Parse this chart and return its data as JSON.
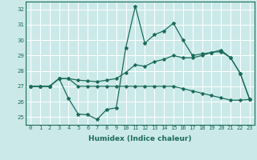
{
  "xlabel": "Humidex (Indice chaleur)",
  "bg_color": "#cce9e9",
  "grid_color": "#ffffff",
  "line_color": "#1a6b5a",
  "xlim": [
    -0.5,
    23.5
  ],
  "ylim": [
    24.5,
    32.5
  ],
  "yticks": [
    25,
    26,
    27,
    28,
    29,
    30,
    31,
    32
  ],
  "xticks": [
    0,
    1,
    2,
    3,
    4,
    5,
    6,
    7,
    8,
    9,
    10,
    11,
    12,
    13,
    14,
    15,
    16,
    17,
    18,
    19,
    20,
    21,
    22,
    23
  ],
  "line1": [
    27.0,
    27.0,
    27.0,
    27.5,
    26.2,
    25.2,
    25.15,
    24.85,
    25.5,
    25.6,
    29.5,
    32.2,
    29.8,
    30.35,
    30.6,
    31.1,
    30.0,
    29.0,
    29.1,
    29.2,
    29.35,
    28.85,
    27.85,
    26.15
  ],
  "line2": [
    27.0,
    27.0,
    27.0,
    27.5,
    27.5,
    27.4,
    27.35,
    27.3,
    27.4,
    27.5,
    27.9,
    28.4,
    28.3,
    28.6,
    28.75,
    29.0,
    28.85,
    28.85,
    29.0,
    29.2,
    29.25,
    28.85,
    27.85,
    26.15
  ],
  "line3": [
    27.0,
    27.0,
    27.0,
    27.5,
    27.5,
    27.0,
    27.0,
    27.0,
    27.0,
    27.0,
    27.0,
    27.0,
    27.0,
    27.0,
    27.0,
    27.0,
    26.85,
    26.7,
    26.55,
    26.4,
    26.25,
    26.1,
    26.1,
    26.15
  ],
  "xlabel_fontsize": 6.5,
  "tick_fontsize": 5.0
}
